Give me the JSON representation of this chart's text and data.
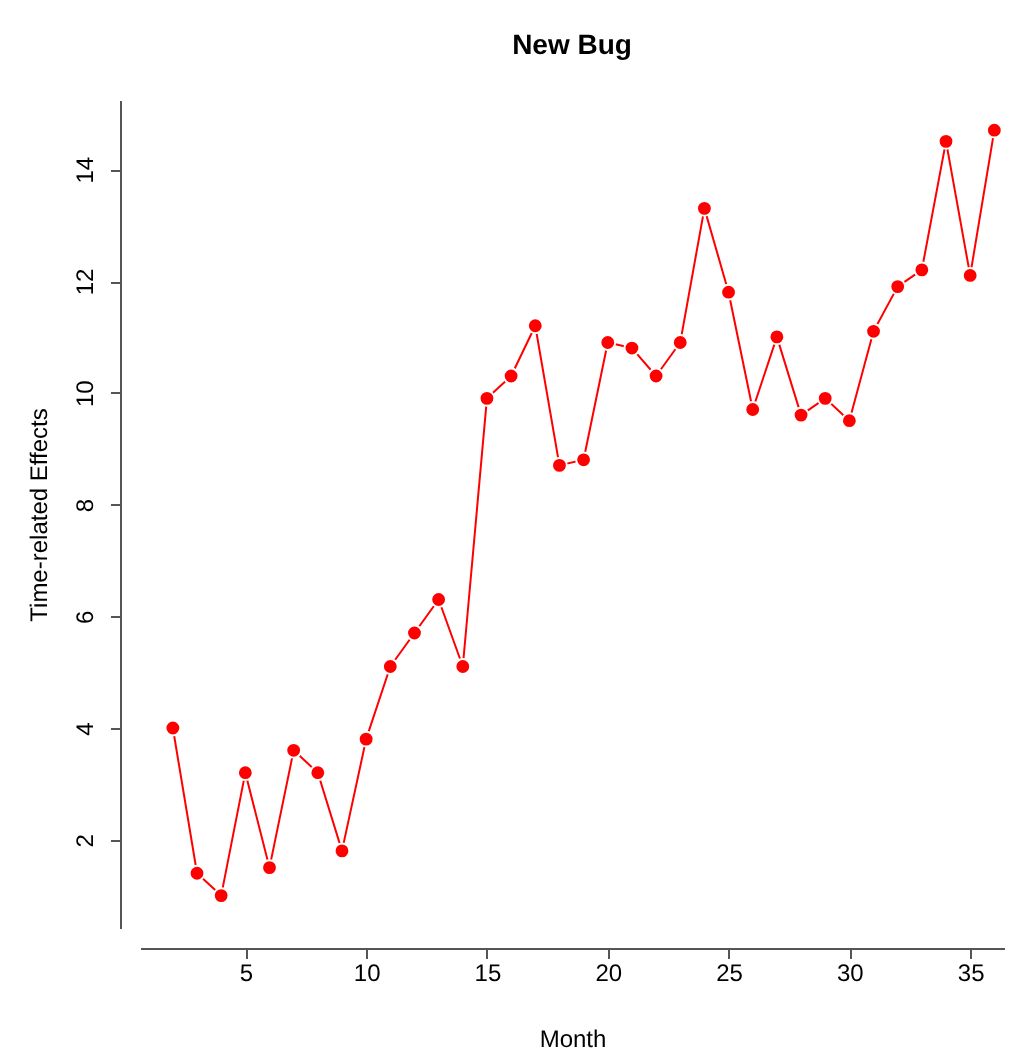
{
  "chart_data": {
    "type": "line",
    "title": "New Bug",
    "xlabel": "Month",
    "ylabel": "Time-related Effects",
    "x": [
      2,
      3,
      4,
      5,
      6,
      7,
      8,
      9,
      10,
      11,
      12,
      13,
      14,
      15,
      16,
      17,
      18,
      19,
      20,
      21,
      22,
      23,
      24,
      25,
      26,
      27,
      28,
      29,
      30,
      31,
      32,
      33,
      34,
      35,
      36
    ],
    "series": [
      {
        "color": "#ff0000",
        "values": [
          4.0,
          1.4,
          1.0,
          3.2,
          1.5,
          3.6,
          3.2,
          1.8,
          3.8,
          5.1,
          5.7,
          6.3,
          5.1,
          9.9,
          10.3,
          11.2,
          8.7,
          8.8,
          10.9,
          10.8,
          10.3,
          10.9,
          13.3,
          11.8,
          9.7,
          11.0,
          9.6,
          9.9,
          9.5,
          11.1,
          11.9,
          12.2,
          14.5,
          12.1,
          14.7
        ]
      }
    ],
    "xlim": [
      0.64,
      36.4
    ],
    "xticks": [
      5,
      10,
      15,
      20,
      25,
      30,
      35
    ],
    "ylim": [
      0.42,
      15.24
    ],
    "yticks": [
      2,
      4,
      6,
      8,
      10,
      12,
      14
    ],
    "marker": "circle",
    "line_style": "solid",
    "grid": false
  }
}
